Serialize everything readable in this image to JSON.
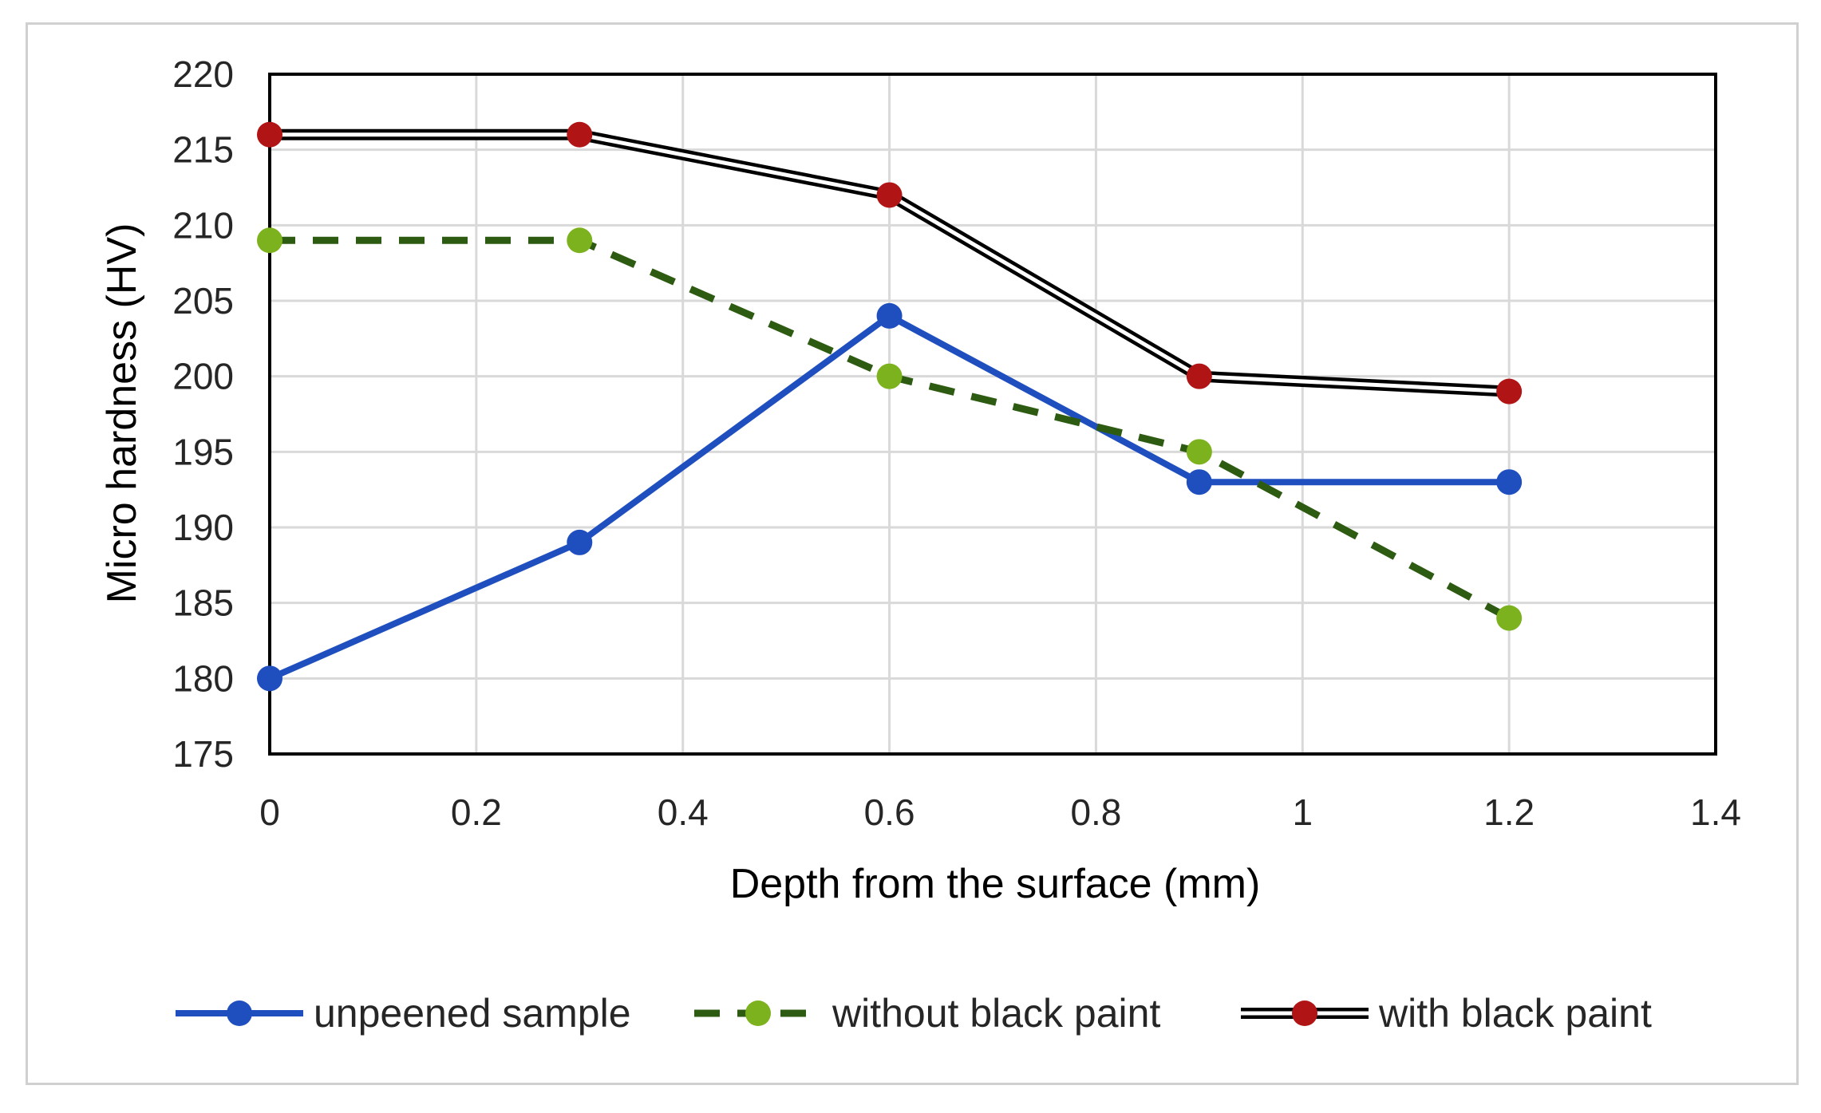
{
  "chart_data": {
    "type": "line",
    "title": "",
    "xlabel": "Depth from the surface (mm)",
    "ylabel": "Micro hardness (HV)",
    "xlim": [
      0,
      1.4
    ],
    "ylim": [
      175,
      220
    ],
    "x_ticks": [
      0,
      0.2,
      0.4,
      0.6,
      0.8,
      1,
      1.2,
      1.4
    ],
    "x_tick_labels": [
      "0",
      "0.2",
      "0.4",
      "0.6",
      "0.8",
      "1",
      "1.2",
      "1.4"
    ],
    "y_ticks": [
      175,
      180,
      185,
      190,
      195,
      200,
      205,
      210,
      215,
      220
    ],
    "y_tick_labels": [
      "175",
      "180",
      "185",
      "190",
      "195",
      "200",
      "205",
      "210",
      "215",
      "220"
    ],
    "grid": true,
    "legend_position": "bottom",
    "series": [
      {
        "name": "unpeened sample",
        "style": "solid",
        "line_color": "#1f4fbf",
        "marker_color": "#1f4fbf",
        "x": [
          0,
          0.3,
          0.6,
          0.9,
          1.2
        ],
        "y": [
          180,
          189,
          204,
          193,
          193
        ]
      },
      {
        "name": "without black paint",
        "style": "dashed",
        "line_color": "#2e5b12",
        "marker_color": "#7db21f",
        "x": [
          0,
          0.3,
          0.6,
          0.9,
          1.2
        ],
        "y": [
          209,
          209,
          200,
          195,
          184
        ]
      },
      {
        "name": "with black paint",
        "style": "double",
        "line_color": "#000000",
        "marker_color": "#b01414",
        "x": [
          0,
          0.3,
          0.6,
          0.9,
          1.2
        ],
        "y": [
          216,
          216,
          212,
          200,
          199
        ]
      }
    ]
  }
}
